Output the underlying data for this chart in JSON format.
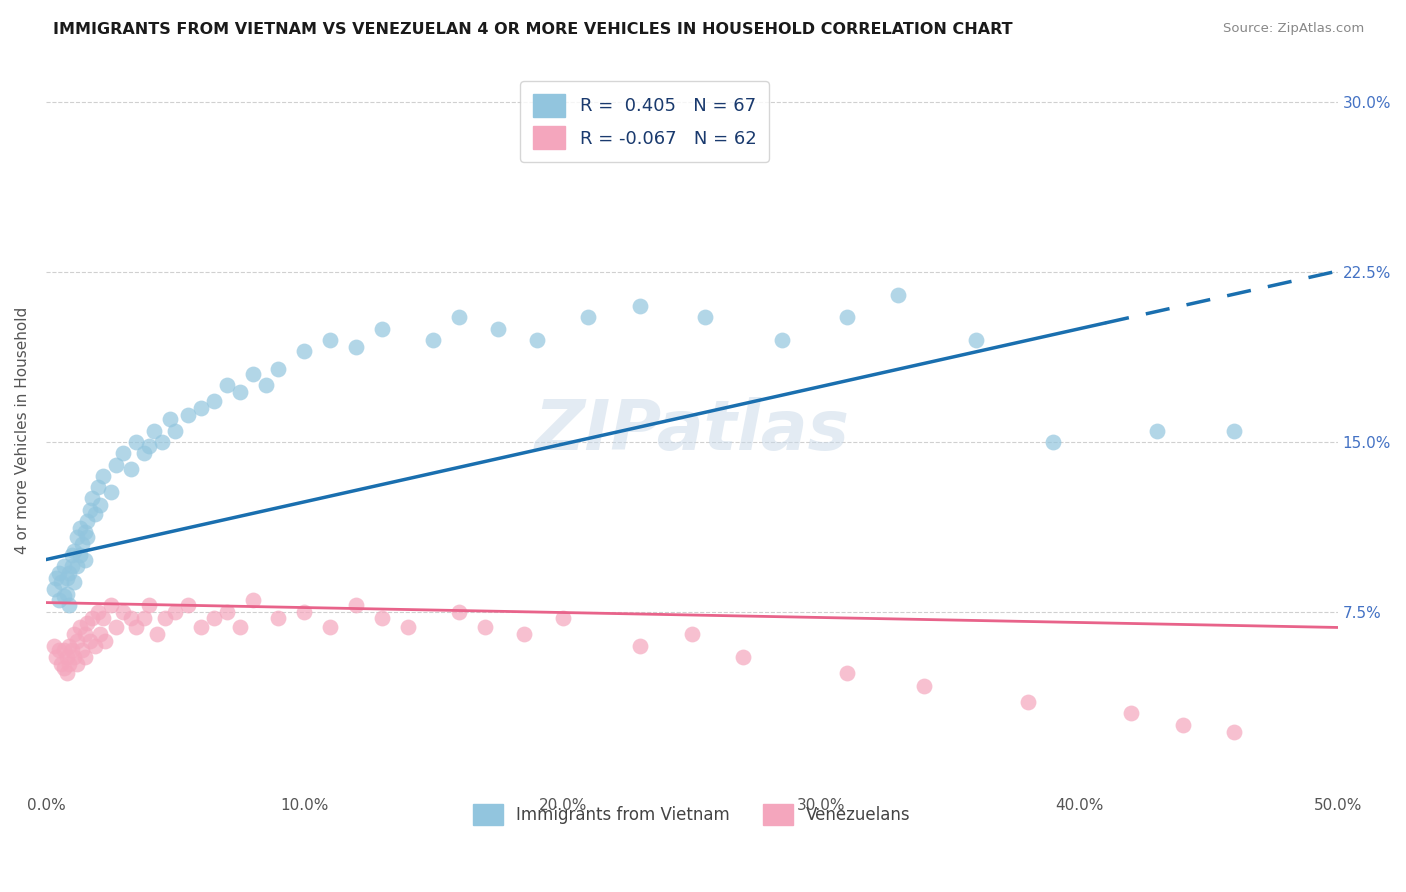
{
  "title": "IMMIGRANTS FROM VIETNAM VS VENEZUELAN 4 OR MORE VEHICLES IN HOUSEHOLD CORRELATION CHART",
  "source": "Source: ZipAtlas.com",
  "ylabel": "4 or more Vehicles in Household",
  "xlim": [
    0.0,
    0.5
  ],
  "ylim": [
    -0.005,
    0.315
  ],
  "xticks": [
    0.0,
    0.1,
    0.2,
    0.3,
    0.4,
    0.5
  ],
  "ytick_vals": [
    0.075,
    0.15,
    0.225,
    0.3
  ],
  "ytick_labels": [
    "7.5%",
    "15.0%",
    "22.5%",
    "30.0%"
  ],
  "xtick_labels": [
    "0.0%",
    "10.0%",
    "20.0%",
    "30.0%",
    "40.0%",
    "50.0%"
  ],
  "legend_label1": "Immigrants from Vietnam",
  "legend_label2": "Venezuelans",
  "color_blue": "#92c5de",
  "color_pink": "#f4a6bd",
  "color_blue_line": "#1a6faf",
  "color_pink_line": "#e8638a",
  "blue_line_intercept": 0.098,
  "blue_line_slope": 0.255,
  "pink_line_intercept": 0.079,
  "pink_line_slope": -0.022,
  "blue_x": [
    0.003,
    0.004,
    0.005,
    0.005,
    0.006,
    0.007,
    0.007,
    0.008,
    0.008,
    0.009,
    0.009,
    0.01,
    0.01,
    0.011,
    0.011,
    0.012,
    0.012,
    0.013,
    0.013,
    0.014,
    0.015,
    0.015,
    0.016,
    0.016,
    0.017,
    0.018,
    0.019,
    0.02,
    0.021,
    0.022,
    0.025,
    0.027,
    0.03,
    0.033,
    0.035,
    0.038,
    0.04,
    0.042,
    0.045,
    0.048,
    0.05,
    0.055,
    0.06,
    0.065,
    0.07,
    0.075,
    0.08,
    0.085,
    0.09,
    0.1,
    0.11,
    0.12,
    0.13,
    0.15,
    0.16,
    0.175,
    0.19,
    0.21,
    0.23,
    0.255,
    0.285,
    0.31,
    0.33,
    0.36,
    0.39,
    0.43,
    0.46
  ],
  "blue_y": [
    0.085,
    0.09,
    0.092,
    0.08,
    0.088,
    0.095,
    0.082,
    0.09,
    0.083,
    0.092,
    0.078,
    0.095,
    0.1,
    0.088,
    0.102,
    0.095,
    0.108,
    0.1,
    0.112,
    0.105,
    0.11,
    0.098,
    0.115,
    0.108,
    0.12,
    0.125,
    0.118,
    0.13,
    0.122,
    0.135,
    0.128,
    0.14,
    0.145,
    0.138,
    0.15,
    0.145,
    0.148,
    0.155,
    0.15,
    0.16,
    0.155,
    0.162,
    0.165,
    0.168,
    0.175,
    0.172,
    0.18,
    0.175,
    0.182,
    0.19,
    0.195,
    0.192,
    0.2,
    0.195,
    0.205,
    0.2,
    0.195,
    0.205,
    0.21,
    0.205,
    0.195,
    0.205,
    0.215,
    0.195,
    0.15,
    0.155,
    0.155
  ],
  "pink_x": [
    0.003,
    0.004,
    0.005,
    0.006,
    0.007,
    0.007,
    0.008,
    0.008,
    0.009,
    0.009,
    0.01,
    0.011,
    0.011,
    0.012,
    0.012,
    0.013,
    0.014,
    0.015,
    0.015,
    0.016,
    0.017,
    0.018,
    0.019,
    0.02,
    0.021,
    0.022,
    0.023,
    0.025,
    0.027,
    0.03,
    0.033,
    0.035,
    0.038,
    0.04,
    0.043,
    0.046,
    0.05,
    0.055,
    0.06,
    0.065,
    0.07,
    0.075,
    0.08,
    0.09,
    0.1,
    0.11,
    0.12,
    0.13,
    0.14,
    0.16,
    0.17,
    0.185,
    0.2,
    0.23,
    0.25,
    0.27,
    0.31,
    0.34,
    0.38,
    0.42,
    0.44,
    0.46
  ],
  "pink_y": [
    0.06,
    0.055,
    0.058,
    0.052,
    0.058,
    0.05,
    0.055,
    0.048,
    0.06,
    0.052,
    0.058,
    0.065,
    0.055,
    0.062,
    0.052,
    0.068,
    0.058,
    0.065,
    0.055,
    0.07,
    0.062,
    0.072,
    0.06,
    0.075,
    0.065,
    0.072,
    0.062,
    0.078,
    0.068,
    0.075,
    0.072,
    0.068,
    0.072,
    0.078,
    0.065,
    0.072,
    0.075,
    0.078,
    0.068,
    0.072,
    0.075,
    0.068,
    0.08,
    0.072,
    0.075,
    0.068,
    0.078,
    0.072,
    0.068,
    0.075,
    0.068,
    0.065,
    0.072,
    0.06,
    0.065,
    0.055,
    0.048,
    0.042,
    0.035,
    0.03,
    0.025,
    0.022
  ],
  "watermark": "ZIPatlas",
  "background_color": "#ffffff",
  "grid_color": "#d0d0d0"
}
